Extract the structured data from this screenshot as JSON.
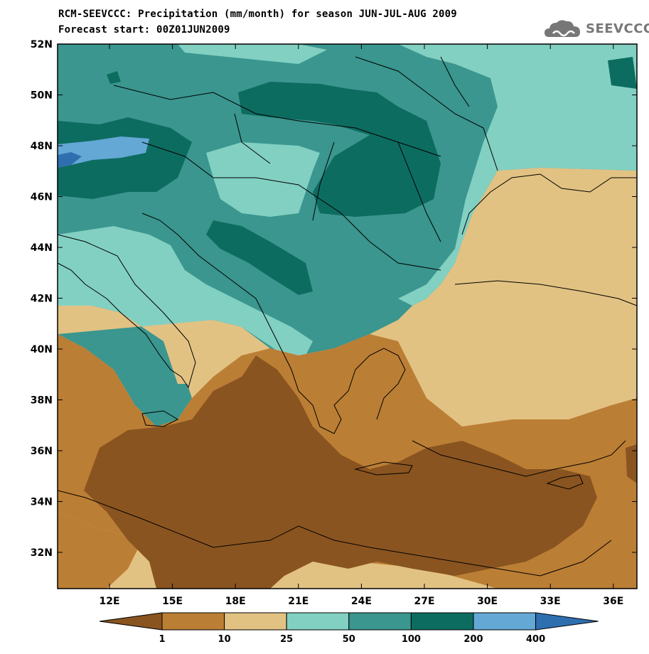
{
  "header": {
    "title_line1": "RCM-SEEVCCC: Precipitation (mm/month) for season JUN-JUL-AUG 2009",
    "title_line2": "Forecast start: 00Z01JUN2009",
    "logo_text": "SEEVCCC"
  },
  "axes": {
    "y_labels": [
      "52N",
      "50N",
      "48N",
      "46N",
      "44N",
      "42N",
      "40N",
      "38N",
      "36N",
      "34N",
      "32N"
    ],
    "x_labels": [
      "12E",
      "15E",
      "18E",
      "21E",
      "24E",
      "27E",
      "30E",
      "33E",
      "36E"
    ]
  },
  "colorbar": {
    "labels": [
      "1",
      "10",
      "25",
      "50",
      "100",
      "200",
      "400"
    ],
    "colors": [
      "#8a5420",
      "#bb7e35",
      "#e2c283",
      "#82d0c2",
      "#3a968e",
      "#0d6c60",
      "#64a8d6",
      "#2f6fb0"
    ]
  },
  "palette": {
    "dark_brown": "#8a5420",
    "brown": "#bb7e35",
    "tan": "#e2c283",
    "light_teal": "#82d0c2",
    "teal": "#3a968e",
    "dark_teal": "#0d6c60",
    "light_blue": "#64a8d6",
    "blue": "#2f6fb0"
  }
}
